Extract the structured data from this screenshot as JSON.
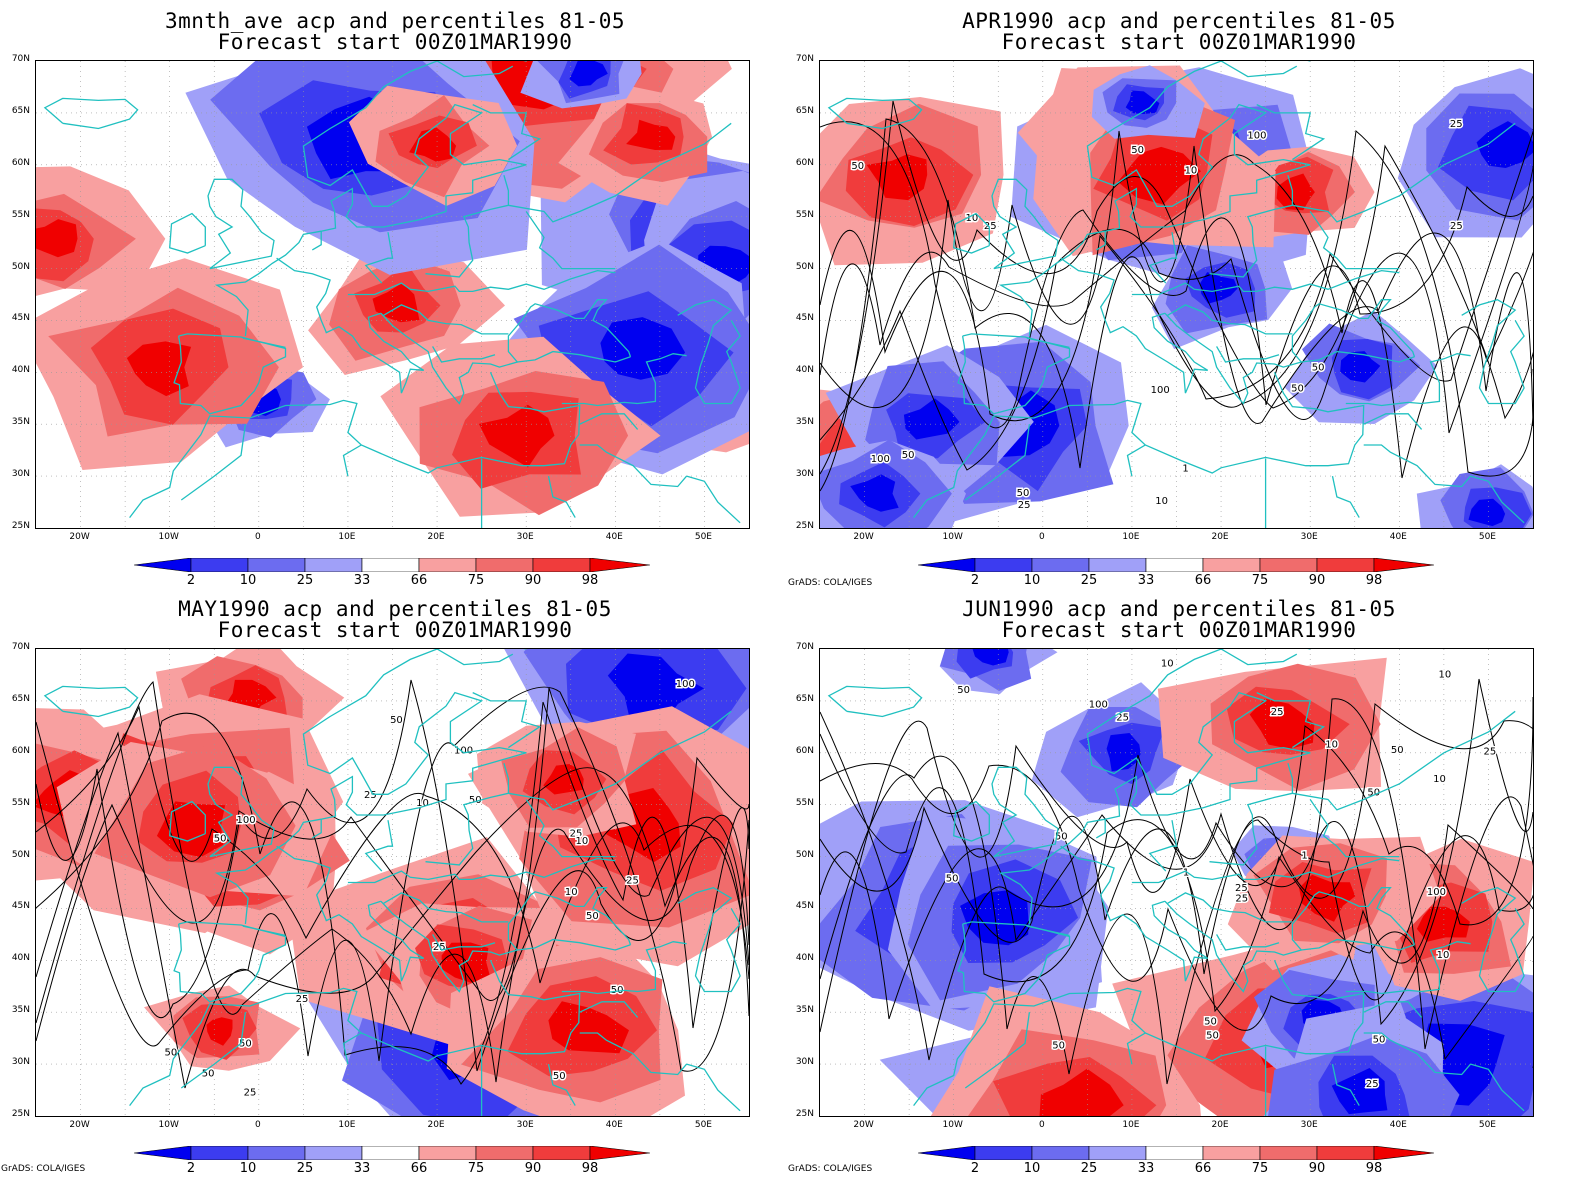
{
  "panels": [
    {
      "title1": "3mnth_ave acp and percentiles 81-05",
      "title2": "Forecast start 00Z01MAR1990",
      "footer": "",
      "contours": [],
      "seed": 3
    },
    {
      "title1": "APR1990 acp and percentiles 81-05",
      "title2": "Forecast start 00Z01MAR1990",
      "footer": "GrADS: COLA/IGES",
      "contours": [
        "100",
        "50",
        "50",
        "50",
        "100",
        "25",
        "10",
        "25",
        "50",
        "100",
        "50",
        "25",
        "10",
        "50",
        "25",
        "10",
        "1"
      ],
      "seed": 7
    },
    {
      "title1": "MAY1990 acp and percentiles 81-05",
      "title2": "Forecast start 00Z01MAR1990",
      "footer": "GrADS: COLA/IGES",
      "contours": [
        "50",
        "50",
        "100",
        "50",
        "50",
        "50",
        "50",
        "100",
        "50",
        "25",
        "50",
        "25",
        "25",
        "10",
        "25",
        "10",
        "50",
        "100",
        "25",
        "10",
        "25"
      ],
      "seed": 11
    },
    {
      "title1": "JUN1990 acp and percentiles 81-05",
      "title2": "Forecast start 00Z01MAR1990",
      "footer": "GrADS: COLA/IGES",
      "contours": [
        "25",
        "25",
        "50",
        "50",
        "50",
        "50",
        "50",
        "100",
        "50",
        "25",
        "25",
        "25",
        "100",
        "50",
        "50",
        "10",
        "50",
        "10",
        "25",
        "1",
        "10",
        "10",
        "1",
        "10"
      ],
      "seed": 19
    }
  ],
  "lat_labels": [
    "70N",
    "65N",
    "60N",
    "55N",
    "50N",
    "45N",
    "40N",
    "35N",
    "30N",
    "25N"
  ],
  "lon_labels": [
    "20W",
    "10W",
    "0",
    "10E",
    "20E",
    "30E",
    "40E",
    "50E"
  ],
  "colorbar_labels": [
    "2",
    "10",
    "25",
    "33",
    "66",
    "75",
    "90",
    "98"
  ],
  "colorbar_colors": [
    "#0000f0",
    "#3c3cf0",
    "#6c6cf0",
    "#a0a0f8",
    "#ffffff",
    "#f8a0a0",
    "#f06c6c",
    "#f03c3c",
    "#f00000"
  ],
  "coast_color": "#20c0c0"
}
